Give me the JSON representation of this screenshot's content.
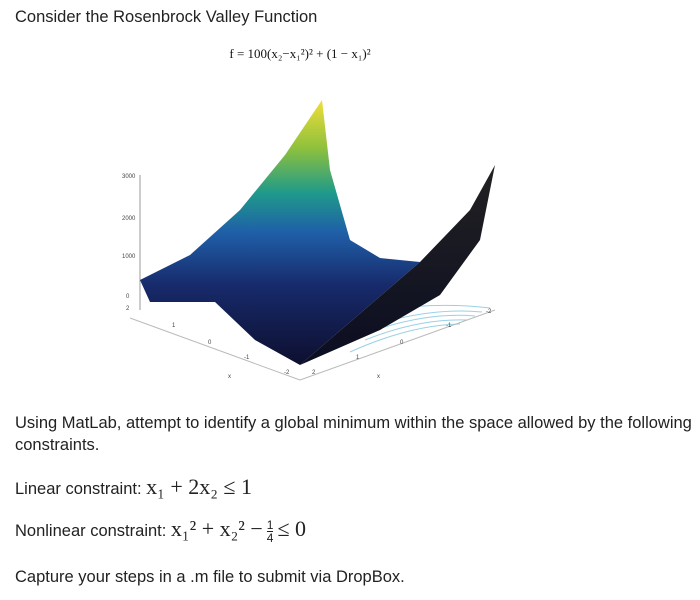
{
  "header": {
    "title": "Consider the Rosenbrock Valley Function"
  },
  "figure": {
    "formula": "f = 100(x₂−x₁²)² + (1 − x₁)²",
    "zticks": [
      3000,
      2000,
      1000,
      0
    ],
    "x1ticks": [
      2,
      1,
      0,
      -1,
      -2
    ],
    "x2ticks": [
      2,
      1,
      0,
      -1,
      -2
    ],
    "x1label": "x",
    "x2label": "x"
  },
  "body": {
    "intro": "Using MatLab, attempt to identify a global minimum within the space allowed by the following constraints.",
    "linear": {
      "label": "Linear constraint:",
      "expression": "x₁ + 2x₂ ≤ 1"
    },
    "nonlinear": {
      "label": "Nonlinear constraint:",
      "before": "x₁² + x₂² −",
      "numerator": "1",
      "denominator": "4",
      "after": "≤ 0"
    },
    "closing": "Capture your steps in a .m file to submit via DropBox."
  }
}
